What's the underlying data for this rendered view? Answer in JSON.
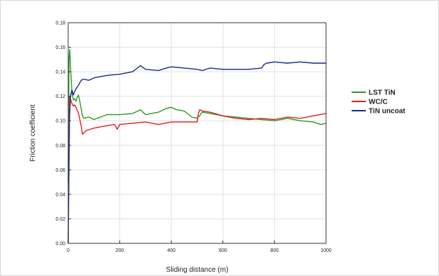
{
  "chart_data": {
    "type": "line",
    "title": "",
    "xlabel": "Sliding distance (m)",
    "ylabel": "Friction coefficient",
    "xlim": [
      0,
      1000
    ],
    "ylim": [
      0.0,
      0.18
    ],
    "xticks": [
      0,
      200,
      400,
      600,
      800,
      1000
    ],
    "xtick_labels": [
      "0",
      "200",
      "400",
      "600",
      "800",
      "1000"
    ],
    "yticks": [
      0.0,
      0.02,
      0.04,
      0.06,
      0.08,
      0.1,
      0.12,
      0.14,
      0.16,
      0.18
    ],
    "ytick_labels": [
      "0.00",
      "0.02",
      "0.04",
      "0.06",
      "0.08",
      "0.10",
      "0.12",
      "0.14",
      "0.16",
      "0.18"
    ],
    "grid": true,
    "legend_position": "right",
    "series": [
      {
        "name": "LST TiN",
        "color": "#2a9a2a",
        "x": [
          0,
          3,
          6,
          10,
          15,
          20,
          25,
          30,
          35,
          40,
          45,
          50,
          55,
          60,
          80,
          100,
          150,
          200,
          250,
          280,
          300,
          350,
          380,
          400,
          420,
          450,
          480,
          500,
          505,
          510,
          515,
          520,
          550,
          600,
          650,
          700,
          750,
          800,
          850,
          900,
          950,
          980,
          1000
        ],
        "y": [
          0.05,
          0.15,
          0.158,
          0.14,
          0.122,
          0.117,
          0.118,
          0.116,
          0.119,
          0.121,
          0.116,
          0.11,
          0.104,
          0.102,
          0.103,
          0.101,
          0.105,
          0.105,
          0.106,
          0.109,
          0.105,
          0.107,
          0.11,
          0.111,
          0.109,
          0.108,
          0.103,
          0.102,
          0.103,
          0.104,
          0.106,
          0.107,
          0.106,
          0.104,
          0.103,
          0.102,
          0.101,
          0.1,
          0.102,
          0.1,
          0.099,
          0.097,
          0.098
        ]
      },
      {
        "name": "WC/C",
        "color": "#e02020",
        "x": [
          0,
          2,
          4,
          6,
          10,
          15,
          20,
          25,
          30,
          40,
          50,
          55,
          60,
          70,
          100,
          150,
          180,
          190,
          200,
          250,
          300,
          350,
          400,
          450,
          500,
          505,
          510,
          520,
          550,
          600,
          650,
          700,
          750,
          800,
          850,
          900,
          950,
          1000
        ],
        "y": [
          0.0,
          0.06,
          0.1,
          0.12,
          0.117,
          0.114,
          0.112,
          0.113,
          0.111,
          0.106,
          0.096,
          0.089,
          0.09,
          0.092,
          0.094,
          0.096,
          0.097,
          0.093,
          0.097,
          0.098,
          0.099,
          0.097,
          0.099,
          0.099,
          0.099,
          0.106,
          0.109,
          0.108,
          0.107,
          0.104,
          0.102,
          0.101,
          0.102,
          0.101,
          0.103,
          0.102,
          0.104,
          0.106
        ]
      },
      {
        "name": "TiN uncoat",
        "color": "#1a2a8c",
        "x": [
          0,
          3,
          5,
          8,
          10,
          15,
          20,
          25,
          30,
          40,
          50,
          60,
          80,
          100,
          150,
          200,
          250,
          280,
          300,
          350,
          380,
          400,
          450,
          500,
          520,
          550,
          600,
          650,
          700,
          750,
          760,
          770,
          800,
          850,
          900,
          950,
          1000
        ],
        "y": [
          0.0,
          0.06,
          0.1,
          0.115,
          0.122,
          0.125,
          0.121,
          0.124,
          0.126,
          0.129,
          0.133,
          0.134,
          0.133,
          0.135,
          0.137,
          0.138,
          0.14,
          0.145,
          0.142,
          0.141,
          0.143,
          0.144,
          0.143,
          0.142,
          0.141,
          0.143,
          0.142,
          0.142,
          0.142,
          0.143,
          0.146,
          0.147,
          0.148,
          0.147,
          0.148,
          0.147,
          0.147
        ]
      }
    ]
  }
}
